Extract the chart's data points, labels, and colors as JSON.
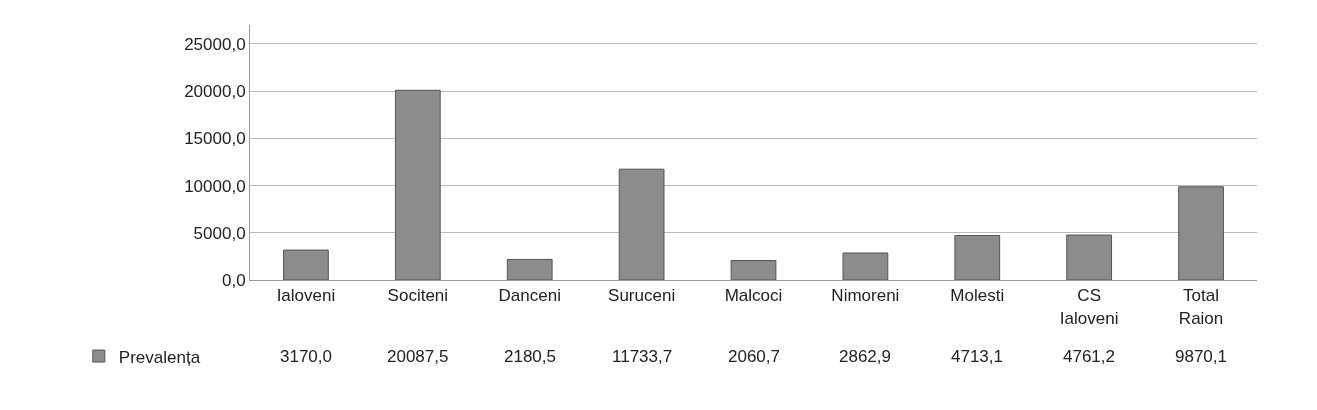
{
  "chart_data": {
    "type": "bar",
    "categories": [
      "Ialoveni",
      "Sociteni",
      "Danceni",
      "Suruceni",
      "Malcoci",
      "Nimoreni",
      "Molesti",
      "CS Ialoveni",
      "Total Raion"
    ],
    "series": [
      {
        "name": "Prevalența",
        "color": "#8c8c8c",
        "values": [
          3170.0,
          20087.5,
          2180.5,
          11733.7,
          2060.7,
          2862.9,
          4713.1,
          4761.2,
          9870.1
        ],
        "value_labels": [
          "3170,0",
          "20087,5",
          "2180,5",
          "11733,7",
          "2060,7",
          "2862,9",
          "4713,1",
          "4761,2",
          "9870,1"
        ]
      }
    ],
    "ylim": [
      0,
      27000
    ],
    "yticks": [
      {
        "value": 0,
        "label": "0,0"
      },
      {
        "value": 5000,
        "label": "5000,0"
      },
      {
        "value": 10000,
        "label": "10000,0"
      },
      {
        "value": 15000,
        "label": "15000,0"
      },
      {
        "value": 20000,
        "label": "20000,0"
      },
      {
        "value": 25000,
        "label": "25000,0"
      }
    ],
    "grid": "y",
    "legend": "bottom left"
  }
}
